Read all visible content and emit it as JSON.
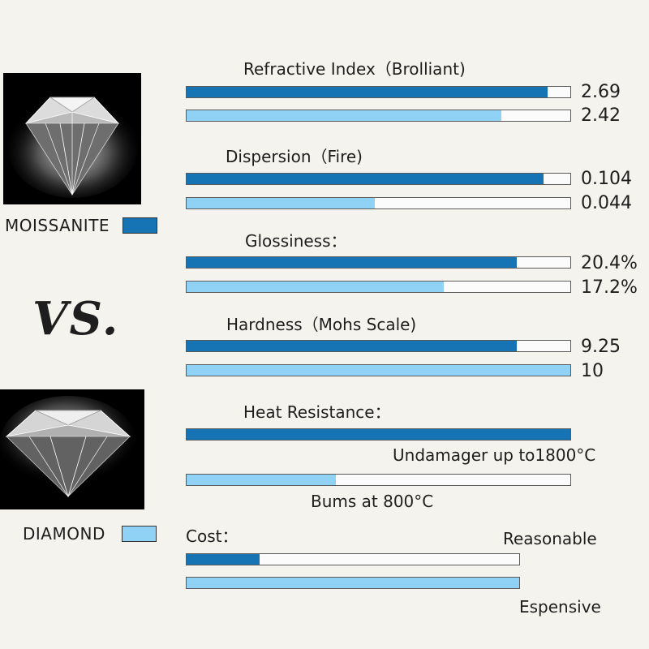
{
  "legend": [
    {
      "label": "MOISSANITE",
      "color": "#1673b4"
    },
    {
      "label": "DIAMOND",
      "color": "#8fd2f6"
    }
  ],
  "vs_text": "VS.",
  "chart_data": {
    "type": "bar",
    "orientation": "horizontal",
    "series": [
      {
        "name": "MOISSANITE"
      },
      {
        "name": "DIAMOND"
      }
    ],
    "groups": [
      {
        "title": "Refractive Index（Brolliant)",
        "bars": [
          {
            "series": "MOISSANITE",
            "fill": 0.94,
            "label": "2.69"
          },
          {
            "series": "DIAMOND",
            "fill": 0.82,
            "label": "2.42"
          }
        ]
      },
      {
        "title": "Dispersion（Fire)",
        "bars": [
          {
            "series": "MOISSANITE",
            "fill": 0.93,
            "label": "0.104"
          },
          {
            "series": "DIAMOND",
            "fill": 0.49,
            "label": "0.044"
          }
        ]
      },
      {
        "title": "Glossiness：",
        "bars": [
          {
            "series": "MOISSANITE",
            "fill": 0.86,
            "label": "20.4%"
          },
          {
            "series": "DIAMOND",
            "fill": 0.67,
            "label": "17.2%"
          }
        ]
      },
      {
        "title": "Hardness（Mohs Scale)",
        "bars": [
          {
            "series": "MOISSANITE",
            "fill": 0.86,
            "label": "9.25"
          },
          {
            "series": "DIAMOND",
            "fill": 1.0,
            "label": "10"
          }
        ]
      },
      {
        "title": "Heat Resistance：",
        "bars": [
          {
            "series": "MOISSANITE",
            "fill": 1.0,
            "label": "Undamager up to1800°C"
          },
          {
            "series": "DIAMOND",
            "fill": 0.39,
            "label": "Bums at 800°C"
          }
        ]
      },
      {
        "title": "Cost：",
        "bars": [
          {
            "series": "MOISSANITE",
            "fill": 0.22,
            "label": "Reasonable"
          },
          {
            "series": "DIAMOND",
            "fill": 1.0,
            "label": "Espensive"
          }
        ]
      }
    ]
  }
}
